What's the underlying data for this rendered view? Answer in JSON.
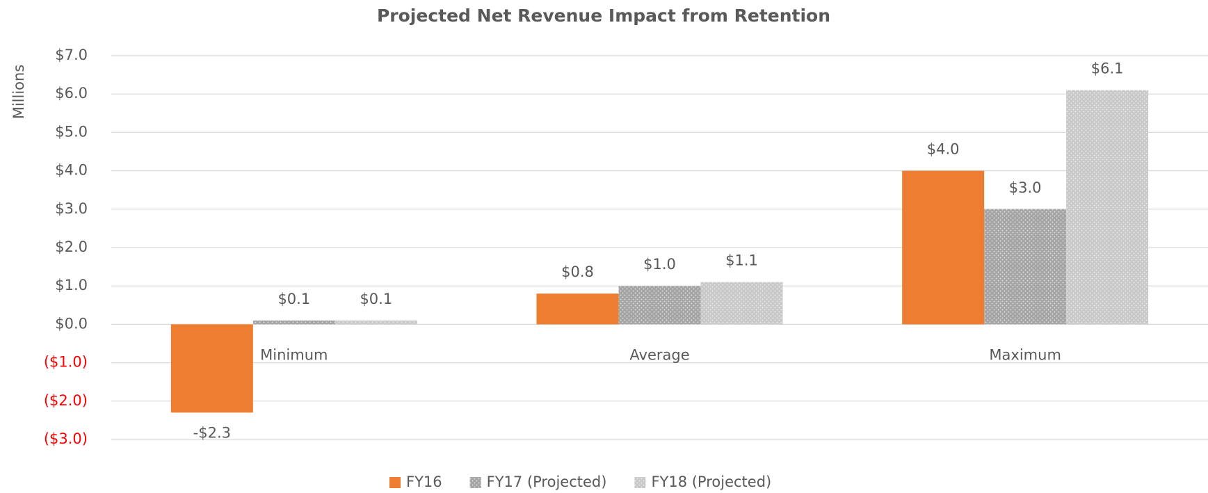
{
  "chart_data": {
    "type": "bar",
    "title": "Projected Net Revenue Impact from Retention",
    "y_axis_label": "Millions",
    "categories": [
      "Minimum",
      "Average",
      "Maximum"
    ],
    "series": [
      {
        "name": "FY16",
        "color": "#ed7d31",
        "values": [
          -2.3,
          0.8,
          4.0
        ],
        "value_labels": [
          "-$2.3",
          "$0.8",
          "$4.0"
        ]
      },
      {
        "name": "FY17 (Projected)",
        "color": "#a5a5a5",
        "values": [
          0.1,
          1.0,
          3.0
        ],
        "value_labels": [
          "$0.1",
          "$1.0",
          "$3.0"
        ]
      },
      {
        "name": "FY18 (Projected)",
        "color": "#c9c9c9",
        "values": [
          0.1,
          1.1,
          6.1
        ],
        "value_labels": [
          "$0.1",
          "$1.1",
          "$6.1"
        ]
      }
    ],
    "ylim": [
      -3,
      7
    ],
    "yticks": [
      {
        "value": -3,
        "label": "($3.0)"
      },
      {
        "value": -2,
        "label": "($2.0)"
      },
      {
        "value": -1,
        "label": "($1.0)"
      },
      {
        "value": 0,
        "label": "$0.0"
      },
      {
        "value": 1,
        "label": "$1.0"
      },
      {
        "value": 2,
        "label": "$2.0"
      },
      {
        "value": 3,
        "label": "$3.0"
      },
      {
        "value": 4,
        "label": "$4.0"
      },
      {
        "value": 5,
        "label": "$5.0"
      },
      {
        "value": 6,
        "label": "$6.0"
      },
      {
        "value": 7,
        "label": "$7.0"
      }
    ],
    "negative_tick_color": "#ff0000",
    "grid": true,
    "legend": "bottom"
  }
}
